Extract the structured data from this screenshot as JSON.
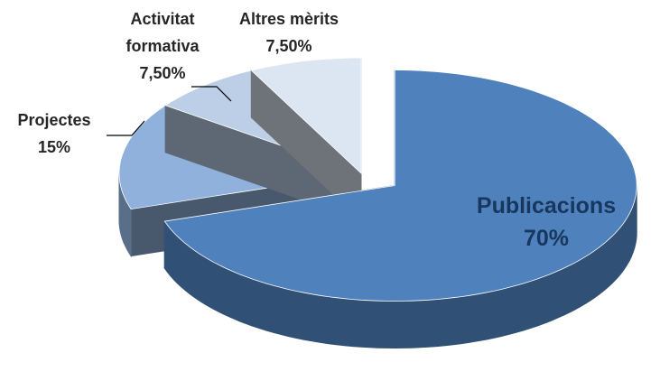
{
  "chart_data": {
    "type": "pie3d",
    "categories": [
      "Publicacions",
      "Projectes",
      "Activitat formativa",
      "Altres mèrits"
    ],
    "values": [
      70,
      15,
      7.5,
      7.5
    ],
    "value_labels": [
      "70%",
      "15%",
      "7,50%",
      "7,50%"
    ],
    "colors": [
      "#4f81bd",
      "#8fb1dc",
      "#bccfe7",
      "#dce6f2"
    ],
    "exploded": [
      true,
      false,
      false,
      false
    ]
  }
}
